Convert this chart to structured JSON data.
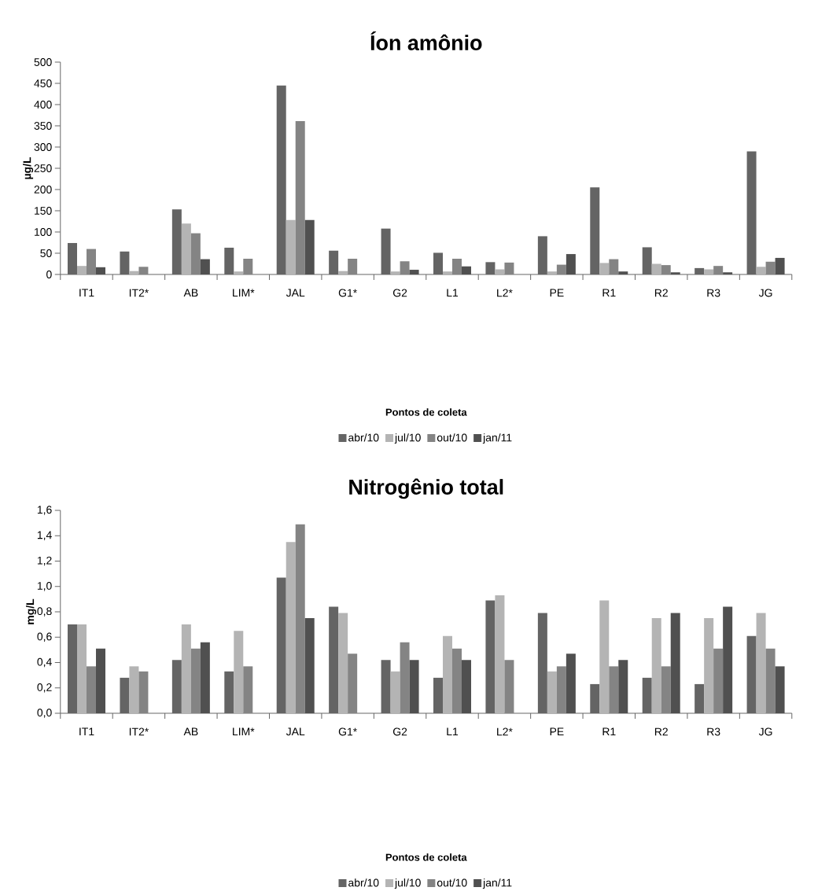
{
  "chart_data": [
    {
      "type": "bar",
      "title": "Íon amônio",
      "xlabel": "Pontos de coleta",
      "ylabel": "µg/L",
      "categories": [
        "IT1",
        "IT2*",
        "AB",
        "LIM*",
        "JAL",
        "G1*",
        "G2",
        "L1",
        "L2*",
        "PE",
        "R1",
        "R2",
        "R3",
        "JG"
      ],
      "series": [
        {
          "name": "abr/10",
          "color": "#646464",
          "values": [
            74,
            54,
            153,
            63,
            445,
            56,
            108,
            51,
            29,
            90,
            205,
            64,
            15,
            290
          ]
        },
        {
          "name": "jul/10",
          "color": "#b4b4b4",
          "values": [
            20,
            8,
            120,
            7,
            128,
            8,
            7,
            7,
            12,
            7,
            27,
            25,
            12,
            18
          ]
        },
        {
          "name": "out/10",
          "color": "#848484",
          "values": [
            60,
            18,
            97,
            37,
            361,
            37,
            31,
            37,
            28,
            23,
            36,
            22,
            20,
            30
          ]
        },
        {
          "name": "jan/11",
          "color": "#505050",
          "values": [
            17,
            null,
            36,
            null,
            128,
            null,
            11,
            19,
            null,
            48,
            7,
            5,
            5,
            39
          ]
        }
      ],
      "ylim": [
        0,
        500
      ],
      "yticks": [
        0,
        50,
        100,
        150,
        200,
        250,
        300,
        350,
        400,
        450,
        500
      ],
      "legend": "bottom"
    },
    {
      "type": "bar",
      "title": "Nitrogênio total",
      "xlabel": "Pontos de coleta",
      "ylabel": "mg/L",
      "categories": [
        "IT1",
        "IT2*",
        "AB",
        "LIM*",
        "JAL",
        "G1*",
        "G2",
        "L1",
        "L2*",
        "PE",
        "R1",
        "R2",
        "R3",
        "JG"
      ],
      "series": [
        {
          "name": "abr/10",
          "color": "#646464",
          "values": [
            0.7,
            0.28,
            0.42,
            0.33,
            1.07,
            0.84,
            0.42,
            0.28,
            0.89,
            0.79,
            0.23,
            0.28,
            0.23,
            0.61
          ]
        },
        {
          "name": "jul/10",
          "color": "#b4b4b4",
          "values": [
            0.7,
            0.37,
            0.7,
            0.65,
            1.35,
            0.79,
            0.33,
            0.61,
            0.93,
            0.33,
            0.89,
            0.75,
            0.75,
            0.79
          ]
        },
        {
          "name": "out/10",
          "color": "#848484",
          "values": [
            0.37,
            0.33,
            0.51,
            0.37,
            1.49,
            0.47,
            0.56,
            0.51,
            0.42,
            0.37,
            0.37,
            0.37,
            0.51,
            0.51
          ]
        },
        {
          "name": "jan/11",
          "color": "#505050",
          "values": [
            0.51,
            null,
            0.56,
            null,
            0.75,
            null,
            0.42,
            0.42,
            null,
            0.47,
            0.42,
            0.79,
            0.84,
            0.37
          ]
        }
      ],
      "ylim": [
        0,
        1.6
      ],
      "yticks": [
        {
          "value": 0,
          "label": "0,0"
        },
        {
          "value": 0.2,
          "label": "0,2"
        },
        {
          "value": 0.4,
          "label": "0,4"
        },
        {
          "value": 0.6,
          "label": "0,6"
        },
        {
          "value": 0.8,
          "label": "0,8"
        },
        {
          "value": 1.0,
          "label": "1,0"
        },
        {
          "value": 1.2,
          "label": "1,2"
        },
        {
          "value": 1.4,
          "label": "1,4"
        },
        {
          "value": 1.6,
          "label": "1,6"
        }
      ],
      "legend": "bottom"
    }
  ]
}
